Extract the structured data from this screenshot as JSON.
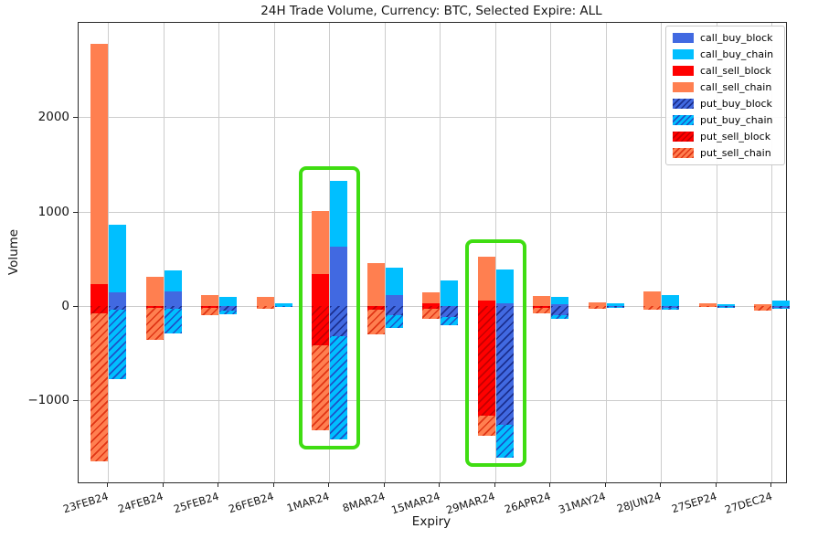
{
  "chart_data": {
    "type": "bar",
    "title": "24H Trade Volume, Currency: BTC, Selected Expire: ALL",
    "xlabel": "Expiry",
    "ylabel": "Volume",
    "grid": true,
    "legend_position": "upper right",
    "bar_layout": "two stacked bars per expiry: sell stack (left, reds), buy stack (right, blues); call segments above zero, put segments below zero, put bars hatched",
    "categories": [
      "23FEB24",
      "24FEB24",
      "25FEB24",
      "26FEB24",
      "1MAR24",
      "8MAR24",
      "15MAR24",
      "29MAR24",
      "26APR24",
      "31MAY24",
      "28JUN24",
      "27SEP24",
      "27DEC24"
    ],
    "ylim": [
      -1871,
      3002
    ],
    "yticks": {
      "values": [
        -1000,
        0,
        1000,
        2000
      ],
      "labels": [
        "−1000",
        "0",
        "1000",
        "2000"
      ]
    },
    "series": [
      {
        "name": "call_buy_block",
        "stack": "buy",
        "hatch": false,
        "color": "#4169e1",
        "hatch_color": null,
        "values": [
          140,
          155,
          0,
          0,
          630,
          115,
          0,
          25,
          20,
          0,
          0,
          0,
          0
        ]
      },
      {
        "name": "call_buy_chain",
        "stack": "buy",
        "hatch": false,
        "color": "#00bfff",
        "hatch_color": null,
        "values": [
          720,
          220,
          100,
          30,
          700,
          295,
          270,
          365,
          80,
          25,
          120,
          15,
          55
        ]
      },
      {
        "name": "call_sell_block",
        "stack": "sell",
        "hatch": false,
        "color": "#ff0000",
        "hatch_color": null,
        "values": [
          230,
          0,
          0,
          0,
          340,
          0,
          25,
          60,
          0,
          0,
          0,
          0,
          0
        ]
      },
      {
        "name": "call_sell_chain",
        "stack": "sell",
        "hatch": false,
        "color": "#ff7f50",
        "hatch_color": null,
        "values": [
          2550,
          310,
          115,
          100,
          670,
          455,
          115,
          460,
          110,
          40,
          150,
          25,
          20
        ]
      },
      {
        "name": "put_buy_block",
        "stack": "buy",
        "hatch": true,
        "color": "#4169e1",
        "hatch_color": "#1b2f8f",
        "values": [
          -40,
          -30,
          -50,
          0,
          -320,
          -95,
          -120,
          -1260,
          -100,
          -10,
          -20,
          -10,
          -20
        ]
      },
      {
        "name": "put_buy_chain",
        "stack": "buy",
        "hatch": true,
        "color": "#00bfff",
        "hatch_color": "#1c53c9",
        "values": [
          -740,
          -260,
          -40,
          -5,
          -1100,
          -135,
          -80,
          -355,
          -40,
          -15,
          -20,
          -15,
          -10
        ]
      },
      {
        "name": "put_sell_block",
        "stack": "sell",
        "hatch": true,
        "color": "#ff0000",
        "hatch_color": "#c40000",
        "values": [
          -75,
          -20,
          -20,
          0,
          -420,
          -40,
          -30,
          -1160,
          -20,
          0,
          0,
          0,
          0
        ]
      },
      {
        "name": "put_sell_chain",
        "stack": "sell",
        "hatch": true,
        "color": "#ff7f50",
        "hatch_color": "#e03515",
        "values": [
          -1575,
          -340,
          -80,
          -30,
          -900,
          -265,
          -110,
          -220,
          -55,
          -30,
          -40,
          -10,
          -50
        ]
      }
    ],
    "highlights": [
      {
        "category": "1MAR24",
        "y_top": 1480,
        "y_bottom": -1520,
        "color": "#3fdd12"
      },
      {
        "category": "29MAR24",
        "y_top": 710,
        "y_bottom": -1710,
        "color": "#3fdd12"
      }
    ],
    "highlight_color": "#3fdd12"
  }
}
